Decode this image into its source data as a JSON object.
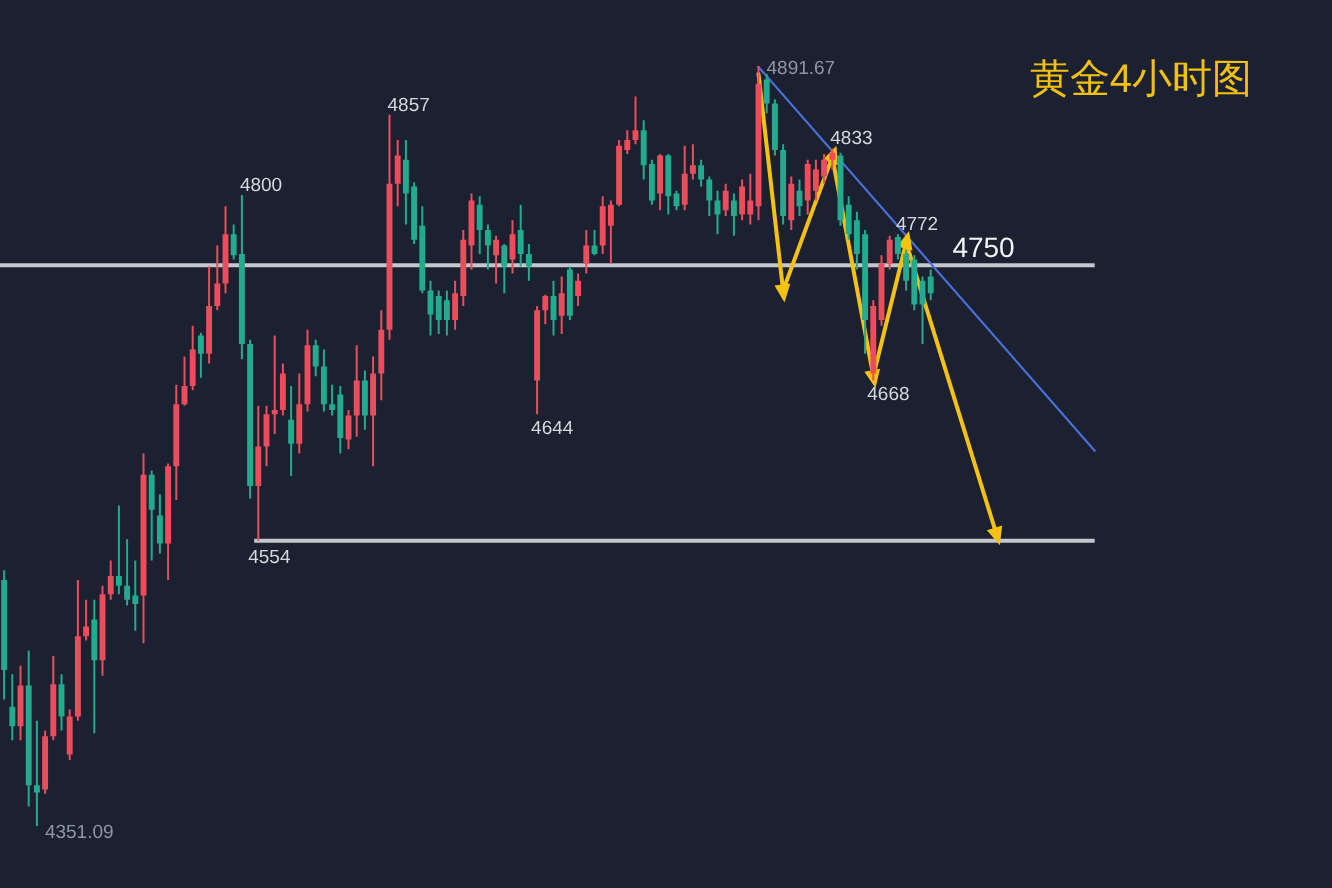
{
  "chart_data": {
    "type": "candlestick",
    "title": "黄金4小时图",
    "categories": [
      null,
      null,
      null,
      null,
      null,
      null,
      null,
      null,
      null,
      null,
      null,
      null,
      null,
      null,
      null,
      null,
      null,
      null,
      null,
      null,
      null,
      null,
      null,
      null,
      null,
      null,
      null,
      null,
      null,
      null,
      null,
      null,
      null,
      null,
      null,
      null,
      null,
      null,
      null,
      null,
      null,
      null,
      null,
      null,
      null,
      null,
      null,
      null,
      null,
      null,
      null,
      null,
      null,
      null,
      null,
      null,
      null,
      null,
      null,
      null,
      null,
      null,
      null,
      null,
      null,
      null,
      null,
      null,
      null,
      null,
      null,
      null,
      null,
      null,
      null,
      null,
      null,
      null,
      null,
      null,
      null,
      null,
      null,
      null,
      null,
      null,
      null,
      null,
      null,
      null,
      null,
      null,
      null,
      null,
      null,
      null,
      null,
      null,
      null,
      null,
      null,
      null,
      null,
      null,
      null,
      null,
      null,
      null,
      null,
      null,
      null,
      null,
      null,
      null,
      null,
      null,
      null,
      null,
      null,
      null,
      null,
      null,
      null,
      null,
      null,
      null,
      null,
      null,
      null,
      null,
      null,
      null,
      null,
      null
    ],
    "ohlc": [
      [
        4526,
        4533,
        4441,
        4462
      ],
      [
        4436,
        4459,
        4412,
        4422
      ],
      [
        4422,
        4465,
        4412,
        4451
      ],
      [
        4451,
        4476,
        4365,
        4380
      ],
      [
        4380,
        4426,
        4351.09,
        4375
      ],
      [
        4377,
        4419,
        4374,
        4415
      ],
      [
        4415,
        4472,
        4412,
        4452
      ],
      [
        4452,
        4459,
        4419,
        4429
      ],
      [
        4402,
        4434,
        4398,
        4429
      ],
      [
        4429,
        4526,
        4426,
        4486
      ],
      [
        4486,
        4512,
        4483,
        4493
      ],
      [
        4498,
        4512,
        4417,
        4469
      ],
      [
        4469,
        4522,
        4458,
        4516
      ],
      [
        4516,
        4540,
        4512,
        4529
      ],
      [
        4529,
        4579,
        4516,
        4522
      ],
      [
        4522,
        4555,
        4508,
        4512
      ],
      [
        4515,
        4540,
        4490,
        4509
      ],
      [
        4515,
        4616,
        4481,
        4601
      ],
      [
        4601,
        4604,
        4540,
        4576
      ],
      [
        4572,
        4587,
        4545,
        4552
      ],
      [
        4552,
        4609,
        4526,
        4607
      ],
      [
        4607,
        4665,
        4583,
        4651
      ],
      [
        4651,
        4685,
        4650,
        4664
      ],
      [
        4664,
        4707,
        4661,
        4690
      ],
      [
        4700,
        4702,
        4670,
        4687
      ],
      [
        4687,
        4749,
        4680,
        4721
      ],
      [
        4721,
        4764,
        4718,
        4737
      ],
      [
        4737,
        4792,
        4730,
        4772
      ],
      [
        4772,
        4779,
        4754,
        4757
      ],
      [
        4758,
        4800,
        4683,
        4694
      ],
      [
        4694,
        4697,
        4584,
        4593
      ],
      [
        4593,
        4650,
        4554,
        4621
      ],
      [
        4621,
        4650,
        4607,
        4644
      ],
      [
        4644,
        4700,
        4630,
        4647
      ],
      [
        4647,
        4680,
        4643,
        4673
      ],
      [
        4640,
        4664,
        4600,
        4623
      ],
      [
        4623,
        4673,
        4616,
        4651
      ],
      [
        4651,
        4704,
        4646,
        4693
      ],
      [
        4693,
        4697,
        4671,
        4678
      ],
      [
        4678,
        4690,
        4646,
        4651
      ],
      [
        4651,
        4665,
        4643,
        4647
      ],
      [
        4658,
        4664,
        4616,
        4627
      ],
      [
        4626,
        4647,
        4619,
        4643
      ],
      [
        4643,
        4693,
        4628,
        4668
      ],
      [
        4668,
        4675,
        4633,
        4643
      ],
      [
        4643,
        4685,
        4607,
        4673
      ],
      [
        4673,
        4718,
        4654,
        4704
      ],
      [
        4704,
        4857,
        4697,
        4808
      ],
      [
        4808,
        4839,
        4792,
        4828
      ],
      [
        4825,
        4839,
        4779,
        4801
      ],
      [
        4806,
        4809,
        4765,
        4768
      ],
      [
        4778,
        4792,
        4730,
        4732
      ],
      [
        4732,
        4739,
        4700,
        4715
      ],
      [
        4728,
        4732,
        4701,
        4711
      ],
      [
        4725,
        4732,
        4700,
        4711
      ],
      [
        4711,
        4739,
        4704,
        4730
      ],
      [
        4728,
        4775,
        4721,
        4768
      ],
      [
        4764,
        4801,
        4747,
        4796
      ],
      [
        4793,
        4799,
        4758,
        4775
      ],
      [
        4775,
        4779,
        4747,
        4764
      ],
      [
        4757,
        4771,
        4737,
        4768
      ],
      [
        4764,
        4765,
        4730,
        4749
      ],
      [
        4754,
        4782,
        4744,
        4772
      ],
      [
        4775,
        4793,
        4749,
        4758
      ],
      [
        4758,
        4765,
        4739,
        4749
      ],
      [
        4668,
        4721,
        4644,
        4718
      ],
      [
        4718,
        4729,
        4708,
        4728
      ],
      [
        4728,
        4739,
        4700,
        4711
      ],
      [
        4714,
        4742,
        4701,
        4730
      ],
      [
        4747,
        4749,
        4711,
        4714
      ],
      [
        4728,
        4744,
        4721,
        4739
      ],
      [
        4751,
        4775,
        4744,
        4764
      ],
      [
        4764,
        4775,
        4757,
        4758
      ],
      [
        4764,
        4799,
        4758,
        4792
      ],
      [
        4778,
        4796,
        4751,
        4793
      ],
      [
        4793,
        4839,
        4792,
        4835
      ],
      [
        4832,
        4846,
        4829,
        4839
      ],
      [
        4839,
        4870,
        4836,
        4846
      ],
      [
        4846,
        4853,
        4811,
        4821
      ],
      [
        4822,
        4825,
        4793,
        4796
      ],
      [
        4801,
        4829,
        4789,
        4828
      ],
      [
        4828,
        4829,
        4786,
        4799
      ],
      [
        4801,
        4803,
        4789,
        4792
      ],
      [
        4793,
        4835,
        4789,
        4815
      ],
      [
        4815,
        4836,
        4811,
        4821
      ],
      [
        4821,
        4825,
        4806,
        4811
      ],
      [
        4811,
        4813,
        4785,
        4796
      ],
      [
        4796,
        4803,
        4772,
        4786
      ],
      [
        4789,
        4808,
        4785,
        4803
      ],
      [
        4796,
        4801,
        4771,
        4785
      ],
      [
        4786,
        4811,
        4782,
        4806
      ],
      [
        4786,
        4815,
        4779,
        4796
      ],
      [
        4792,
        4891.67,
        4782,
        4879
      ],
      [
        4882,
        4886,
        4858,
        4865
      ],
      [
        4865,
        4868,
        4828,
        4832
      ],
      [
        4832,
        4836,
        4779,
        4785
      ],
      [
        4782,
        4813,
        4775,
        4808
      ],
      [
        4803,
        4811,
        4785,
        4792
      ],
      [
        4796,
        4825,
        4786,
        4822
      ],
      [
        4803,
        4825,
        4796,
        4818
      ],
      [
        4813,
        4829,
        4808,
        4825
      ],
      [
        4825,
        4833,
        4818,
        4830
      ],
      [
        4828,
        4830,
        4778,
        4782
      ],
      [
        4793,
        4799,
        4768,
        4772
      ],
      [
        4782,
        4788,
        4747,
        4758
      ],
      [
        4772,
        4775,
        4687,
        4711
      ],
      [
        4673,
        4725,
        4668,
        4721
      ],
      [
        4711,
        4757,
        4707,
        4751
      ],
      [
        4751,
        4771,
        4747,
        4768
      ],
      [
        4770,
        4772,
        4754,
        4758
      ],
      [
        4758,
        4761,
        4732,
        4739
      ],
      [
        4754,
        4757,
        4718,
        4722
      ],
      [
        4739,
        4742,
        4694,
        4722
      ],
      [
        4742,
        4747,
        4725,
        4730
      ],
      null,
      null,
      null,
      null,
      null,
      null,
      null,
      null,
      null,
      null,
      null,
      null,
      null,
      null,
      null,
      null,
      null,
      null,
      null,
      null
    ],
    "value_labels": [
      null,
      null,
      null,
      null,
      "4351.09",
      null,
      null,
      null,
      null,
      null,
      null,
      null,
      null,
      null,
      null,
      null,
      null,
      null,
      null,
      null,
      null,
      null,
      null,
      null,
      null,
      null,
      null,
      null,
      null,
      "4800",
      null,
      null,
      null,
      null,
      null,
      null,
      null,
      null,
      null,
      null,
      null,
      null,
      null,
      null,
      null,
      null,
      null,
      "4857",
      null,
      null,
      null,
      null,
      null,
      null,
      null,
      null,
      null,
      null,
      null,
      null,
      null,
      null,
      null,
      null,
      null,
      "4644",
      null,
      null,
      null,
      null,
      null,
      null,
      null,
      null,
      null,
      null,
      null,
      null,
      null,
      null,
      null,
      null,
      null,
      null,
      null,
      null,
      null,
      null,
      null,
      null,
      null,
      null,
      "4891.67",
      null,
      null,
      null,
      null,
      null,
      null,
      null,
      null,
      "4833",
      null,
      null,
      null,
      null,
      "4668",
      null,
      null,
      "4772",
      null,
      null,
      null,
      null,
      null,
      null,
      null,
      null,
      null,
      null,
      null,
      null,
      null,
      null,
      null,
      null,
      null,
      null,
      null,
      null,
      null,
      null,
      null,
      null
    ],
    "series": [
      {
        "type": "line",
        "color": "#4a6fd6",
        "values": [
          null,
          null,
          null,
          null,
          null,
          null,
          null,
          null,
          null,
          null,
          null,
          null,
          null,
          null,
          null,
          null,
          null,
          null,
          null,
          null,
          null,
          null,
          null,
          null,
          null,
          null,
          null,
          null,
          null,
          null,
          null,
          null,
          null,
          null,
          null,
          null,
          null,
          null,
          null,
          null,
          null,
          null,
          null,
          null,
          null,
          null,
          null,
          null,
          null,
          null,
          null,
          null,
          null,
          null,
          null,
          null,
          null,
          null,
          null,
          null,
          null,
          null,
          null,
          null,
          null,
          null,
          null,
          null,
          null,
          null,
          null,
          null,
          null,
          null,
          null,
          null,
          null,
          null,
          null,
          null,
          null,
          null,
          null,
          null,
          null,
          null,
          null,
          null,
          null,
          null,
          null,
          null,
          4891,
          null,
          null,
          null,
          null,
          null,
          null,
          null,
          null,
          null,
          null,
          null,
          null,
          null,
          null,
          null,
          null,
          null,
          null,
          null,
          null,
          null,
          null,
          null,
          null,
          null,
          null,
          null,
          null,
          null,
          null,
          null,
          null,
          null,
          null,
          null,
          null,
          null,
          null,
          null,
          null,
          4618
        ]
      },
      {
        "type": "line",
        "color": "#f5c211",
        "marker": "triangle",
        "values": [
          null,
          null,
          null,
          null,
          null,
          null,
          null,
          null,
          null,
          null,
          null,
          null,
          null,
          null,
          null,
          null,
          null,
          null,
          null,
          null,
          null,
          null,
          null,
          null,
          null,
          null,
          null,
          null,
          null,
          null,
          null,
          null,
          null,
          null,
          null,
          null,
          null,
          null,
          null,
          null,
          null,
          null,
          null,
          null,
          null,
          null,
          null,
          null,
          null,
          null,
          null,
          null,
          null,
          null,
          null,
          null,
          null,
          null,
          null,
          null,
          null,
          null,
          null,
          null,
          null,
          null,
          null,
          null,
          null,
          null,
          null,
          null,
          null,
          null,
          null,
          null,
          null,
          null,
          null,
          null,
          null,
          null,
          null,
          null,
          null,
          null,
          null,
          null,
          null,
          null,
          null,
          null,
          4886,
          null,
          null,
          4732,
          null,
          null,
          null,
          null,
          null,
          4827,
          null,
          null,
          null,
          null,
          4671,
          null,
          null,
          null,
          4766,
          null,
          null,
          null,
          null,
          null,
          null,
          null,
          null,
          null,
          null,
          4559,
          null,
          null,
          null,
          null,
          null,
          null,
          null,
          null,
          null,
          null,
          null,
          null
        ]
      }
    ],
    "ref_lines": [
      {
        "axis": "y",
        "value": 4750,
        "label": "4750",
        "color": "#c4c7cc"
      },
      {
        "axis": "y",
        "value": 4554,
        "label": "4554",
        "color": "#c4c7cc"
      }
    ]
  }
}
